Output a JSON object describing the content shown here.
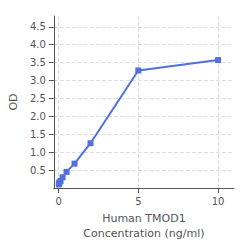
{
  "chart_data": {
    "type": "line",
    "xlabel": "Human TMOD1\nConcentration (ng/ml)",
    "ylabel": "OD",
    "x": [
      0.0156,
      0.0313,
      0.0625,
      0.125,
      0.25,
      0.5,
      1,
      2,
      5,
      10
    ],
    "values": [
      0.1,
      0.13,
      0.16,
      0.2,
      0.3,
      0.45,
      0.68,
      1.25,
      3.28,
      3.57
    ],
    "xlim": [
      -0.3,
      11
    ],
    "xticks": [
      0,
      5,
      10
    ],
    "ylim": [
      0,
      4.8
    ],
    "yticks": [
      0.5,
      {
        "value": 1.0,
        "label": "1.0"
      },
      1.5,
      {
        "value": 2.0,
        "label": "2.0"
      },
      2.5,
      {
        "value": 3.0,
        "label": "3.0"
      },
      3.5,
      {
        "value": 4.0,
        "label": "4.0"
      },
      4.5
    ],
    "marker": "square",
    "grid": true
  }
}
